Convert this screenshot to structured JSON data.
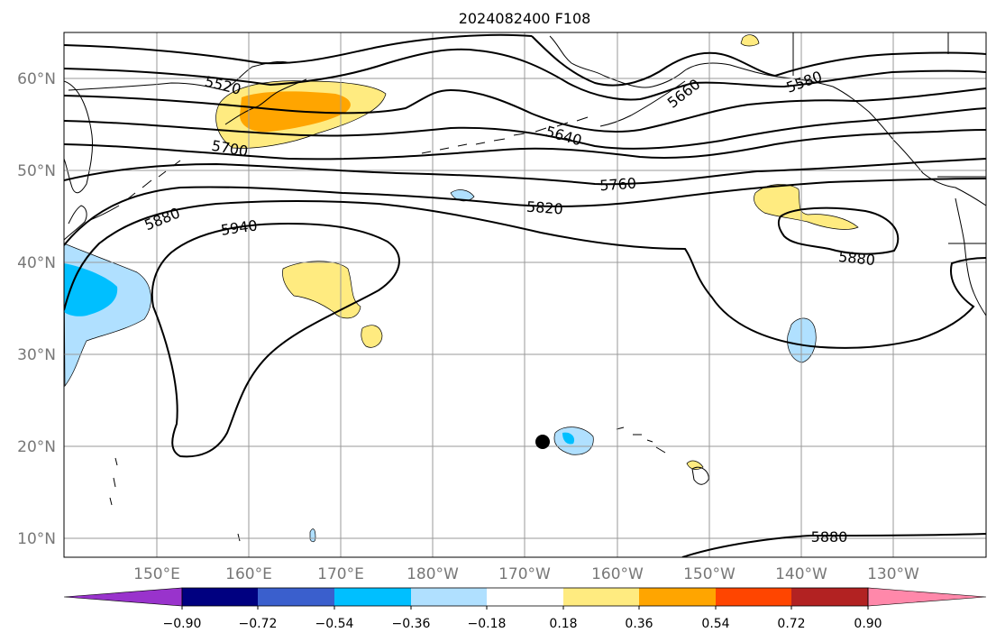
{
  "title": "2024082400 F108",
  "lat_labels": [
    "60°N",
    "50°N",
    "40°N",
    "30°N",
    "20°N",
    "10°N"
  ],
  "lon_labels": [
    "150°E",
    "160°E",
    "170°E",
    "180°W",
    "170°W",
    "160°W",
    "150°W",
    "140°W",
    "130°W"
  ],
  "contour_labels": [
    "5520",
    "5580",
    "5640",
    "5660",
    "5700",
    "5760",
    "5820",
    "5880",
    "5940",
    "5880",
    "5880"
  ],
  "colorbar": {
    "ticks": [
      "−0.90",
      "−0.72",
      "−0.54",
      "−0.36",
      "−0.18",
      "0.18",
      "0.36",
      "0.54",
      "0.72",
      "0.90"
    ],
    "colors": [
      "#9933cc",
      "#000080",
      "#3a5fcd",
      "#00bfff",
      "#b0e0ff",
      "#ffffff",
      "#ffeb80",
      "#ffa500",
      "#ff4500",
      "#b22222",
      "#ff88aa"
    ]
  },
  "colors": {
    "light_yellow": "#ffeb80",
    "orange": "#ffa500",
    "light_blue": "#b0e0ff",
    "blue": "#00bfff",
    "marker": "#000000"
  }
}
